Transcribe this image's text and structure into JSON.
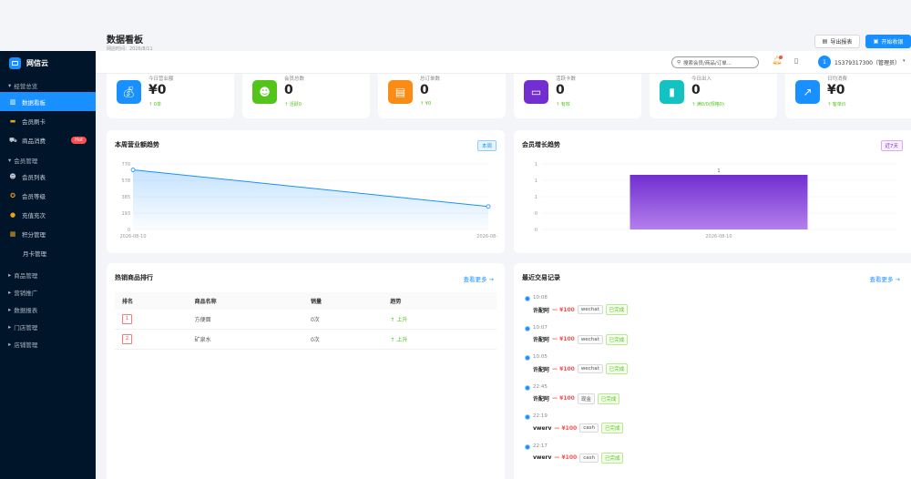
{
  "header": {
    "title": "数据看板",
    "subtitle": "网店时间：2026/8/11",
    "export_label": "导出报表",
    "start_label": "开始收银"
  },
  "topbar": {
    "search_placeholder": "搜索会员/商品/订单...",
    "avatar_text": "1",
    "user": "15379317300（管理员）"
  },
  "sidebar": {
    "brand": "网信云",
    "group_overview": "经营总览",
    "items_overview": [
      {
        "label": "数据看板",
        "icon": "dashboard-icon",
        "active": true
      },
      {
        "label": "会员刷卡",
        "icon": "card-icon"
      },
      {
        "label": "商品消费",
        "icon": "cart-icon",
        "badge": "Hot"
      }
    ],
    "group_member": "会员管理",
    "items_member": [
      {
        "label": "会员列表",
        "icon": "users-icon"
      },
      {
        "label": "会员等级",
        "icon": "medal-icon"
      },
      {
        "label": "充值充次",
        "icon": "coin-icon"
      },
      {
        "label": "积分管理",
        "icon": "gift-icon"
      },
      {
        "label": "月卡管理",
        "icon": ""
      }
    ],
    "groups_collapsed": [
      "商品管理",
      "营销推广",
      "数据报表",
      "门店管理",
      "店铺管理"
    ]
  },
  "stats": [
    {
      "label": "今日营业额",
      "value": "¥0",
      "sub": "↑ 0单",
      "color": "#1890ff",
      "icon": "money-bag-icon"
    },
    {
      "label": "会员总数",
      "value": "0",
      "sub": "↑ 活跃0",
      "color": "#52c41a",
      "icon": "members-icon"
    },
    {
      "label": "总订单数",
      "value": "0",
      "sub": "↑ ¥0",
      "color": "#fa8c16",
      "icon": "receipt-icon"
    },
    {
      "label": "活跃卡数",
      "value": "0",
      "sub": "↑ 有效",
      "color": "#722ed1",
      "icon": "card-icon"
    },
    {
      "label": "今日出入",
      "value": "0",
      "sub": "↑ 满0/0(规格0)",
      "color": "#13c2c2",
      "icon": "door-icon"
    },
    {
      "label": "日均消费",
      "value": "¥0",
      "sub": "↑ 客单价",
      "color": "#1890ff",
      "icon": "trend-icon"
    }
  ],
  "revenue_panel": {
    "title": "本周营业额趋势",
    "tag": "本周"
  },
  "member_panel": {
    "title": "会员增长趋势",
    "tag": "近7天"
  },
  "chart_data": [
    {
      "type": "area",
      "title": "本周营业额趋势",
      "x": [
        "2026-08-10",
        "2026-08-"
      ],
      "values": [
        700,
        270
      ],
      "yticks": [
        "770",
        "578",
        "385",
        "193",
        "0"
      ],
      "ylim": [
        0,
        770
      ],
      "grid": true,
      "color": "#1890ff"
    },
    {
      "type": "bar",
      "title": "会员增长趋势",
      "categories": [
        "2026-08-10"
      ],
      "values": [
        1
      ],
      "data_labels": [
        "1"
      ],
      "yticks": [
        "1",
        "1",
        "1",
        "0",
        "0"
      ],
      "ylim": [
        0,
        1.2
      ],
      "grid": true,
      "color": "#722ed1"
    }
  ],
  "hot_products": {
    "title": "热销商品排行",
    "more": "查看更多 →",
    "columns": [
      "排名",
      "商品名称",
      "销量",
      "趋势"
    ],
    "rows": [
      {
        "rank": "1",
        "name": "方便面",
        "sales": "0次",
        "trend": "↑ 上升"
      },
      {
        "rank": "2",
        "name": "矿泉水",
        "sales": "0次",
        "trend": "↑ 上升"
      }
    ]
  },
  "transactions": {
    "title": "最近交易记录",
    "more": "查看更多 →",
    "items": [
      {
        "time": "10:08",
        "name": "许配阿",
        "amount": "— ¥100",
        "pay": "wechat",
        "status": "已完成"
      },
      {
        "time": "10:07",
        "name": "许配阿",
        "amount": "— ¥100",
        "pay": "wechat",
        "status": "已完成"
      },
      {
        "time": "10:05",
        "name": "许配阿",
        "amount": "— ¥100",
        "pay": "wechat",
        "status": "已完成"
      },
      {
        "time": "22:45",
        "name": "许配阿",
        "amount": "— ¥100",
        "pay": "现金",
        "status": "已完成"
      },
      {
        "time": "22:19",
        "name": "vwerv",
        "amount": "— ¥100",
        "pay": "cash",
        "status": "已完成"
      },
      {
        "time": "22:17",
        "name": "vwerv",
        "amount": "— ¥100",
        "pay": "cash",
        "status": "已完成"
      }
    ]
  }
}
